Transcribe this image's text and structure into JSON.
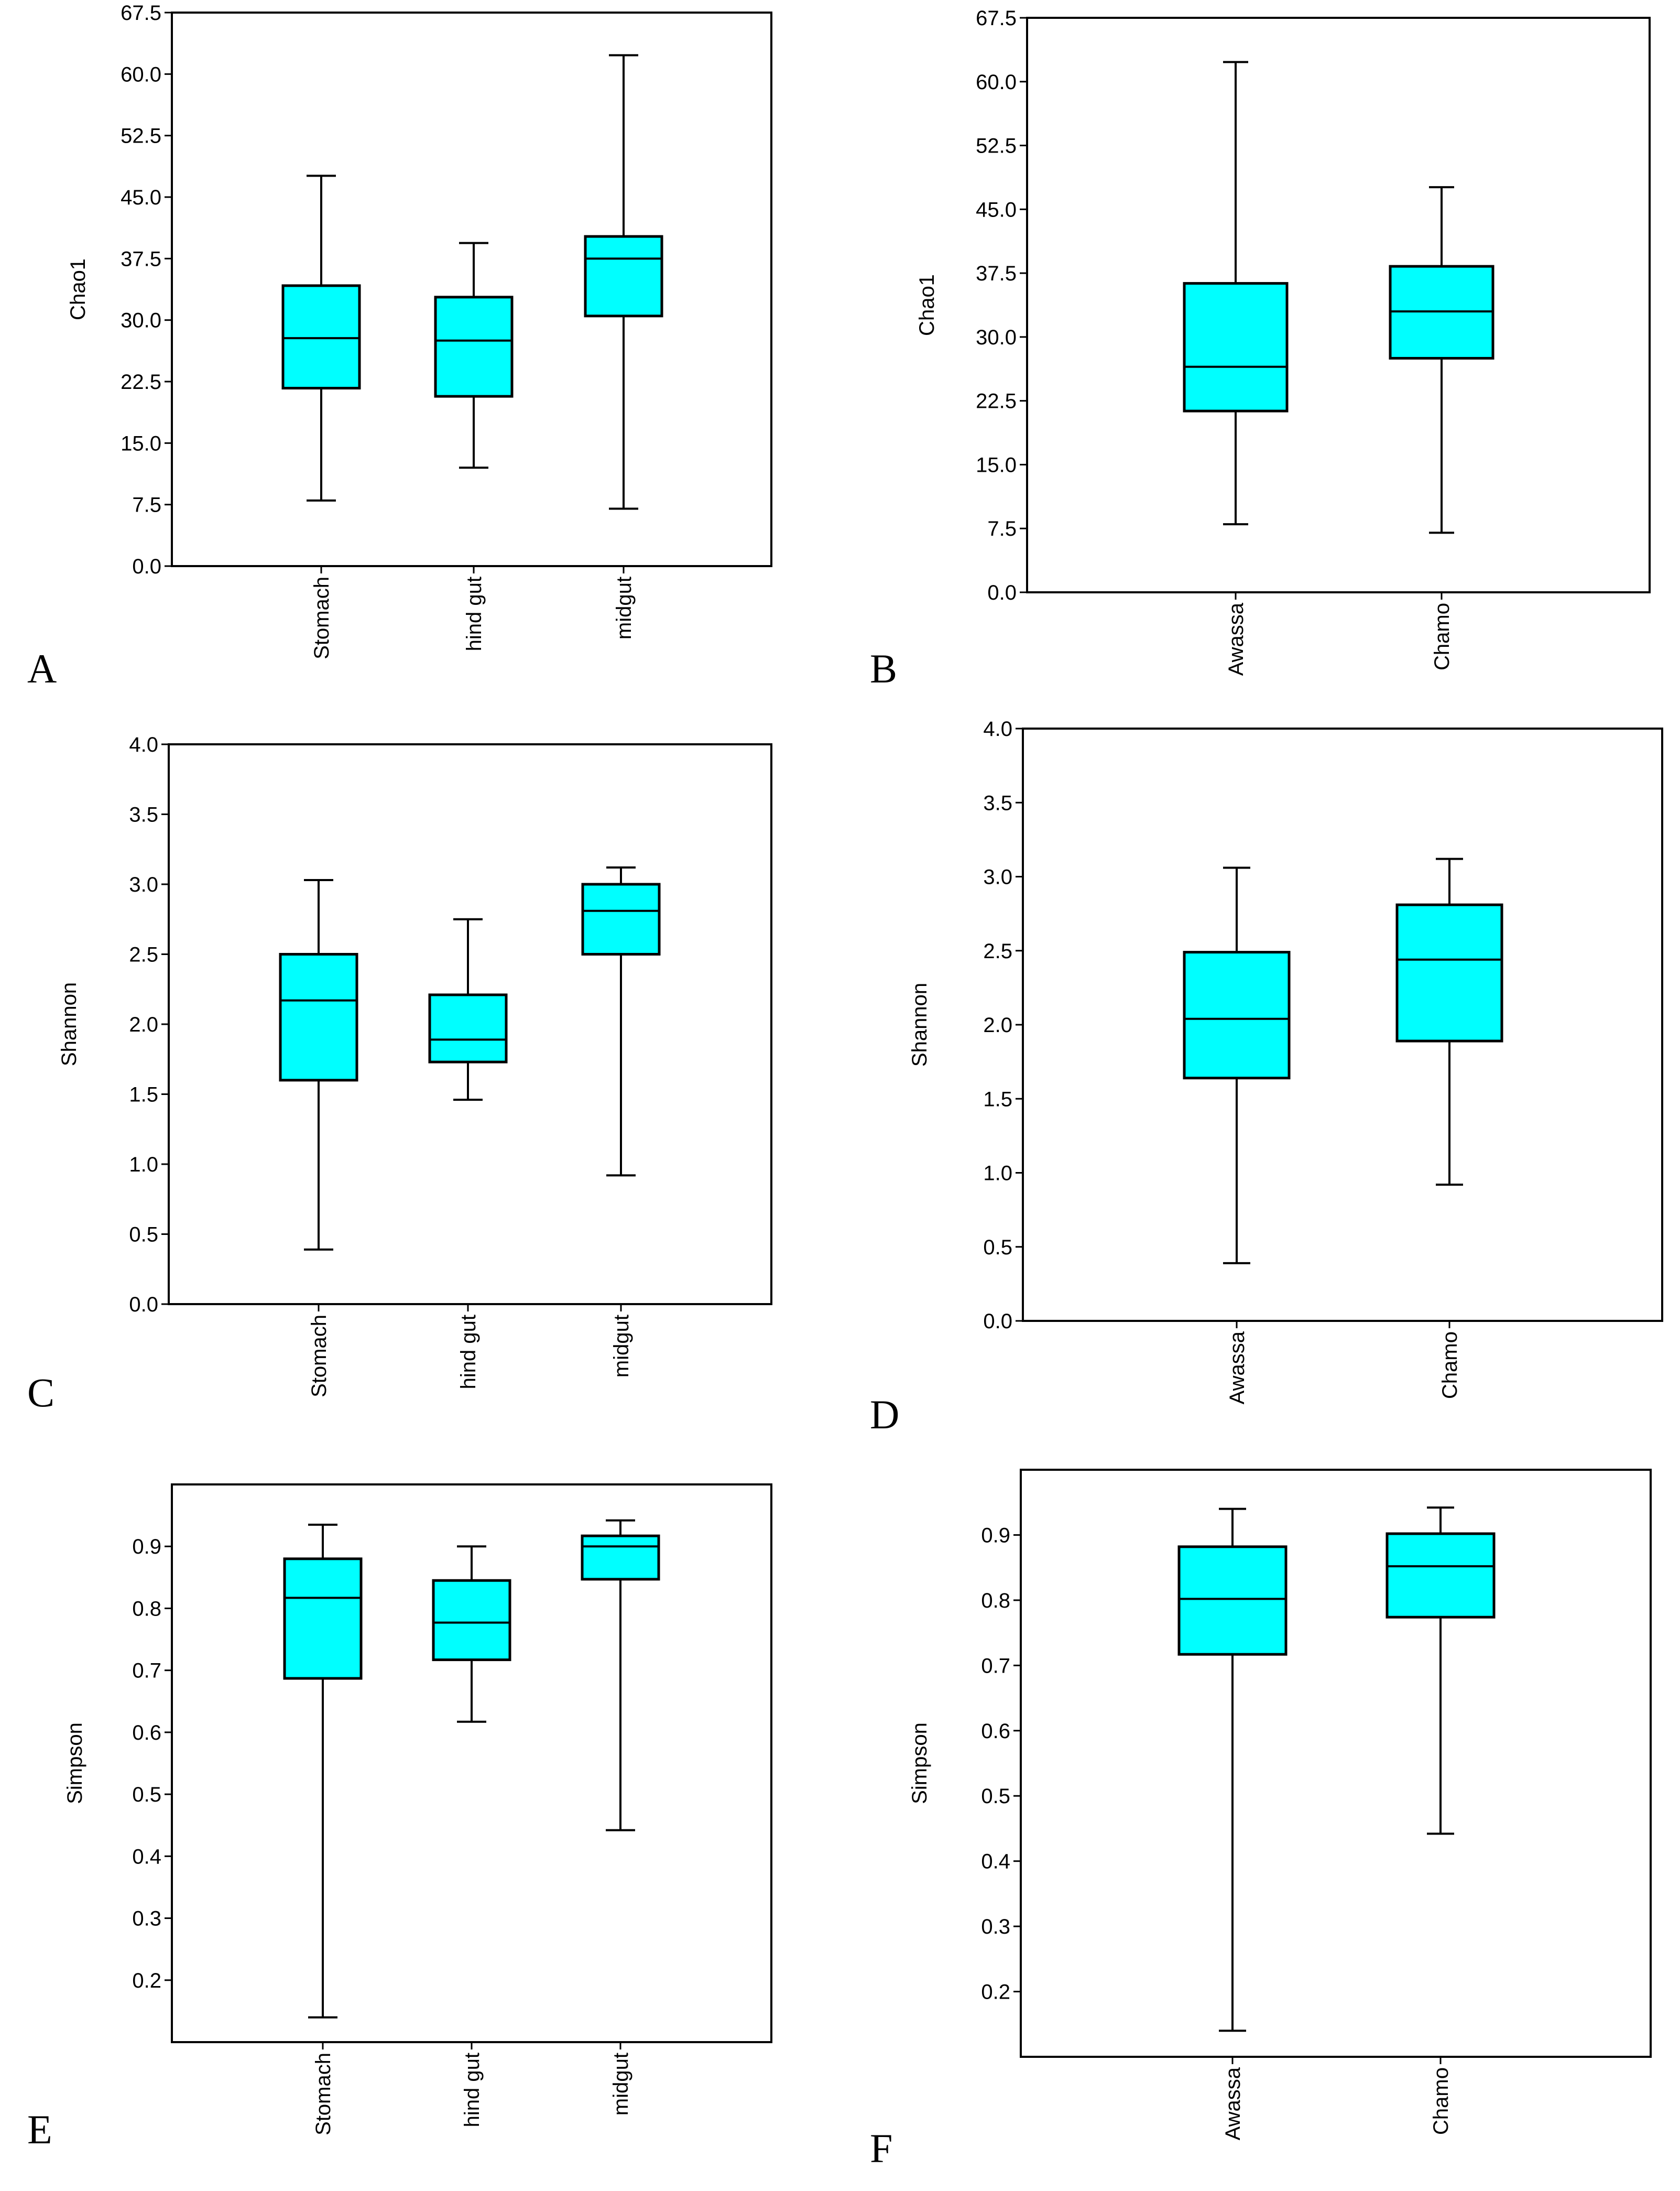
{
  "figure": {
    "box_fill": "#00ffff",
    "line_color": "#000000",
    "background": "#ffffff"
  },
  "chart_data": [
    {
      "panel": "A",
      "type": "box",
      "ylabel": "Chao1",
      "ylim": [
        0,
        67.5
      ],
      "yticks": [
        0,
        7.5,
        15,
        22.5,
        30,
        37.5,
        45,
        52.5,
        60,
        67.5
      ],
      "ytick_labels": [
        "0.0",
        "7.5",
        "15.0",
        "22.5",
        "30.0",
        "37.5",
        "45.0",
        "52.5",
        "60.0",
        "67.5"
      ],
      "categories": [
        "Stomach",
        "hind gut",
        "midgut"
      ],
      "boxes": [
        {
          "min": 8,
          "q1": 21.7,
          "median": 27.8,
          "q3": 34.2,
          "max": 47.6
        },
        {
          "min": 12,
          "q1": 20.7,
          "median": 27.5,
          "q3": 32.8,
          "max": 39.4
        },
        {
          "min": 7,
          "q1": 30.5,
          "median": 37.5,
          "q3": 40.2,
          "max": 62.3
        }
      ]
    },
    {
      "panel": "B",
      "type": "box",
      "ylabel": "Chao1",
      "ylim": [
        0,
        67.5
      ],
      "yticks": [
        0,
        7.5,
        15,
        22.5,
        30,
        37.5,
        45,
        52.5,
        60,
        67.5
      ],
      "ytick_labels": [
        "0.0",
        "7.5",
        "15.0",
        "22.5",
        "30.0",
        "37.5",
        "45.0",
        "52.5",
        "60.0",
        "67.5"
      ],
      "categories": [
        "Awassa",
        "Chamo"
      ],
      "boxes": [
        {
          "min": 8,
          "q1": 21.3,
          "median": 26.5,
          "q3": 36.3,
          "max": 62.3
        },
        {
          "min": 7,
          "q1": 27.5,
          "median": 33,
          "q3": 38.3,
          "max": 47.6
        }
      ]
    },
    {
      "panel": "C",
      "type": "box",
      "ylabel": "Shannon",
      "ylim": [
        0,
        4.0
      ],
      "yticks": [
        0,
        0.5,
        1.0,
        1.5,
        2.0,
        2.5,
        3.0,
        3.5,
        4.0
      ],
      "ytick_labels": [
        "0.0",
        "0.5",
        "1.0",
        "1.5",
        "2.0",
        "2.5",
        "3.0",
        "3.5",
        "4.0"
      ],
      "categories": [
        "Stomach",
        "hind gut",
        "midgut"
      ],
      "boxes": [
        {
          "min": 0.39,
          "q1": 1.6,
          "median": 2.17,
          "q3": 2.5,
          "max": 3.03
        },
        {
          "min": 1.46,
          "q1": 1.73,
          "median": 1.89,
          "q3": 2.21,
          "max": 2.75
        },
        {
          "min": 0.92,
          "q1": 2.5,
          "median": 2.81,
          "q3": 3.0,
          "max": 3.12
        }
      ]
    },
    {
      "panel": "D",
      "type": "box",
      "ylabel": "Shannon",
      "ylim": [
        0,
        4.0
      ],
      "yticks": [
        0,
        0.5,
        1.0,
        1.5,
        2.0,
        2.5,
        3.0,
        3.5,
        4.0
      ],
      "ytick_labels": [
        "0.0",
        "0.5",
        "1.0",
        "1.5",
        "2.0",
        "2.5",
        "3.0",
        "3.5",
        "4.0"
      ],
      "categories": [
        "Awassa",
        "Chamo"
      ],
      "boxes": [
        {
          "min": 0.39,
          "q1": 1.64,
          "median": 2.04,
          "q3": 2.49,
          "max": 3.06
        },
        {
          "min": 0.92,
          "q1": 1.89,
          "median": 2.44,
          "q3": 2.81,
          "max": 3.12
        }
      ]
    },
    {
      "panel": "E",
      "type": "box",
      "ylabel": "Simpson",
      "ylim": [
        0.1,
        1.0
      ],
      "yticks": [
        0.2,
        0.3,
        0.4,
        0.5,
        0.6,
        0.7,
        0.8,
        0.9
      ],
      "ytick_labels": [
        "0.2",
        "0.3",
        "0.4",
        "0.5",
        "0.6",
        "0.7",
        "0.8",
        "0.9"
      ],
      "categories": [
        "Stomach",
        "hind gut",
        "midgut"
      ],
      "boxes": [
        {
          "min": 0.14,
          "q1": 0.687,
          "median": 0.817,
          "q3": 0.88,
          "max": 0.935
        },
        {
          "min": 0.617,
          "q1": 0.717,
          "median": 0.777,
          "q3": 0.845,
          "max": 0.9
        },
        {
          "min": 0.442,
          "q1": 0.847,
          "median": 0.9,
          "q3": 0.917,
          "max": 0.942
        }
      ]
    },
    {
      "panel": "F",
      "type": "box",
      "ylabel": "Simpson",
      "ylim": [
        0.1,
        1.0
      ],
      "yticks": [
        0.2,
        0.3,
        0.4,
        0.5,
        0.6,
        0.7,
        0.8,
        0.9
      ],
      "ytick_labels": [
        "0.2",
        "0.3",
        "0.4",
        "0.5",
        "0.6",
        "0.7",
        "0.8",
        "0.9"
      ],
      "categories": [
        "Awassa",
        "Chamo"
      ],
      "boxes": [
        {
          "min": 0.14,
          "q1": 0.717,
          "median": 0.802,
          "q3": 0.882,
          "max": 0.94
        },
        {
          "min": 0.442,
          "q1": 0.774,
          "median": 0.852,
          "q3": 0.902,
          "max": 0.942
        }
      ]
    }
  ]
}
